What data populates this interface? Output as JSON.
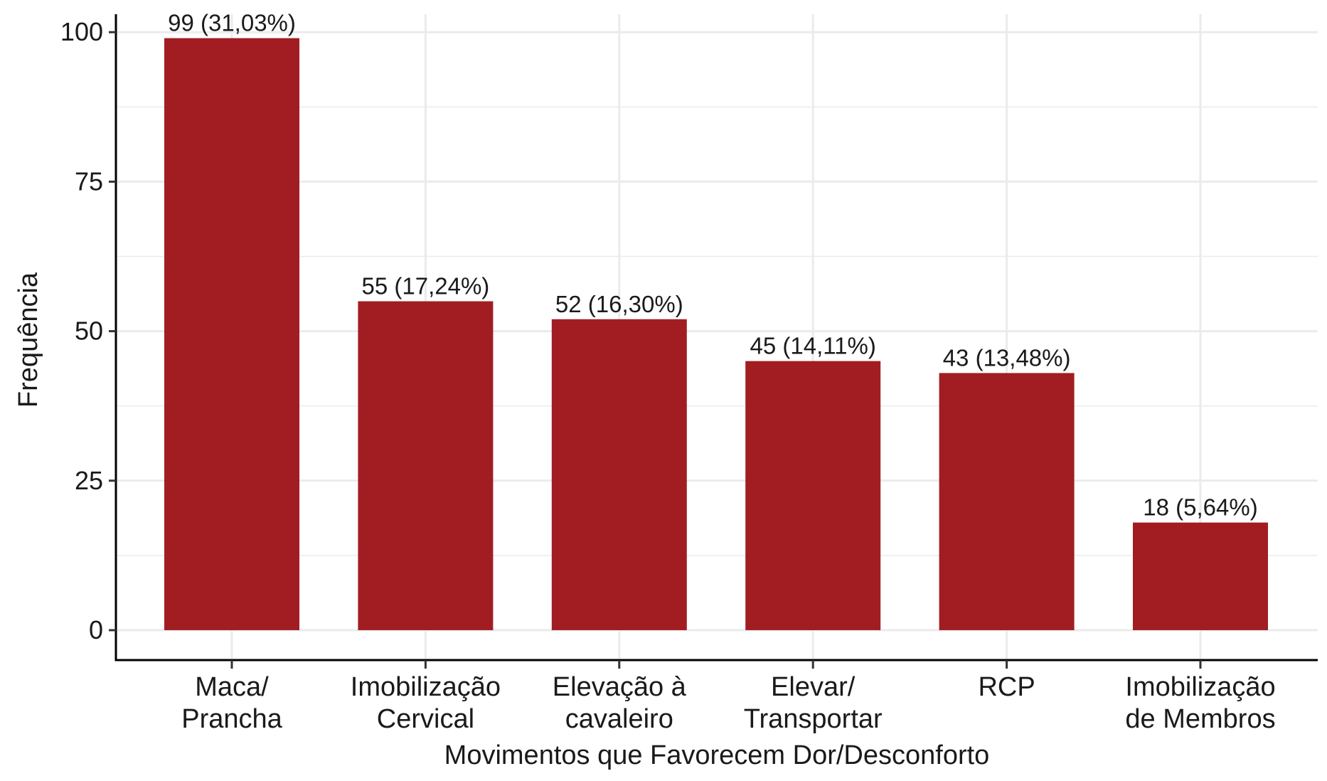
{
  "chart_data": {
    "type": "bar",
    "title": "",
    "xlabel": "Movimentos que Favorecem Dor/Desconforto",
    "ylabel": "Frequência",
    "ylim": [
      -5,
      103
    ],
    "yticks": [
      0,
      25,
      50,
      75,
      100
    ],
    "grid": true,
    "bar_color": "#A11D22",
    "categories": [
      [
        "Maca/",
        "Prancha"
      ],
      [
        "Imobilização",
        "Cervical"
      ],
      [
        "Elevação à",
        "cavaleiro"
      ],
      [
        "Elevar/",
        "Transportar"
      ],
      [
        "RCP"
      ],
      [
        "Imobilização",
        "de Membros"
      ]
    ],
    "values": [
      99,
      55,
      52,
      45,
      43,
      18
    ],
    "data_labels": [
      "99 (31,03%)",
      "55 (17,24%)",
      "52 (16,30%)",
      "45 (14,11%)",
      "43 (13,48%)",
      "18 (5,64%)"
    ]
  }
}
